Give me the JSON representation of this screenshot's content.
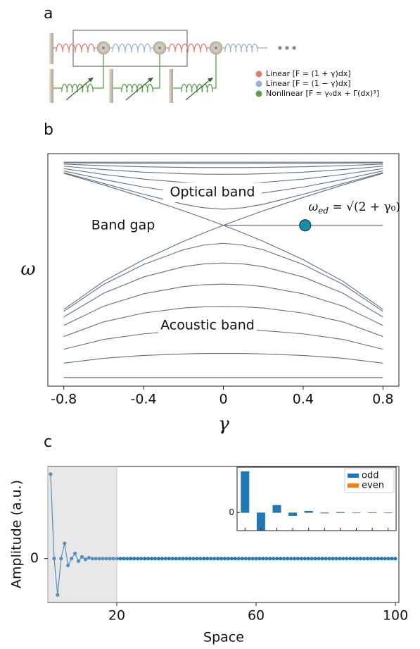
{
  "diagram": {
    "panel_label": "a",
    "legend": [
      {
        "label": "Linear  [F = (1 + γ)dx]",
        "color": "#e07b6a"
      },
      {
        "label": "Linear  [F = (1 − γ)dx]",
        "color": "#9ab0d3"
      },
      {
        "label": "Nonlinear  [F = γ₀dx + Γ(dx)³]",
        "color": "#5a9e4a"
      }
    ]
  },
  "chart_data": [
    {
      "type": "line",
      "panel_label": "b",
      "xlabel": "γ",
      "ylabel": "ω",
      "xlim": [
        -0.88,
        0.88
      ],
      "ylim": [
        -0.08,
        2.08
      ],
      "xticks": [
        {
          "value": -0.8,
          "label": "-0.8"
        },
        {
          "value": -0.4,
          "label": "-0.4"
        },
        0,
        0.4,
        0.8
      ],
      "x": [
        -0.8,
        -0.6,
        -0.4,
        -0.2,
        -0.1,
        0,
        0.1,
        0.2,
        0.4,
        0.6,
        0.8
      ],
      "series": [
        {
          "color": "#5f7186",
          "values": [
            0,
            0,
            0,
            0,
            0,
            0,
            0,
            0,
            0,
            0,
            0
          ]
        },
        {
          "color": "#5f7186",
          "values": [
            0.134,
            0.179,
            0.205,
            0.219,
            0.224,
            0.224,
            0.224,
            0.219,
            0.205,
            0.179,
            0.134
          ]
        },
        {
          "color": "#5f7186",
          "values": [
            0.263,
            0.354,
            0.406,
            0.436,
            0.443,
            0.445,
            0.443,
            0.436,
            0.406,
            0.354,
            0.263
          ]
        },
        {
          "color": "#5f7186",
          "values": [
            0.381,
            0.517,
            0.599,
            0.646,
            0.657,
            0.66,
            0.657,
            0.646,
            0.599,
            0.517,
            0.381
          ]
        },
        {
          "color": "#5f7186",
          "values": [
            0.484,
            0.663,
            0.778,
            0.845,
            0.862,
            0.868,
            0.862,
            0.845,
            0.778,
            0.663,
            0.484
          ]
        },
        {
          "color": "#5f7186",
          "values": [
            0.563,
            0.783,
            0.934,
            1.03,
            1.055,
            1.064,
            1.055,
            1.03,
            0.934,
            0.783,
            0.563
          ]
        },
        {
          "color": "#5f7186",
          "values": [
            0.615,
            0.865,
            1.05,
            1.187,
            1.23,
            1.247,
            1.23,
            1.187,
            1.05,
            0.865,
            0.615
          ]
        },
        {
          "color": "#5f7186",
          "values": [
            0.632,
            0.894,
            1.095,
            1.265,
            1.342,
            1.414,
            1.342,
            1.265,
            1.095,
            0.894,
            0.632
          ]
        },
        {
          "color": "#5f7186",
          "values": [
            2,
            2,
            2,
            2,
            2,
            2,
            2,
            2,
            2,
            2,
            2
          ]
        },
        {
          "color": "#5f7186",
          "values": [
            1.995,
            1.992,
            1.989,
            1.988,
            1.987,
            1.987,
            1.987,
            1.988,
            1.989,
            1.992,
            1.995
          ]
        },
        {
          "color": "#5f7186",
          "values": [
            1.983,
            1.968,
            1.958,
            1.952,
            1.95,
            1.95,
            1.95,
            1.952,
            1.958,
            1.968,
            1.983
          ]
        },
        {
          "color": "#5f7186",
          "values": [
            1.963,
            1.932,
            1.908,
            1.893,
            1.889,
            1.888,
            1.889,
            1.893,
            1.908,
            1.932,
            1.963
          ]
        },
        {
          "color": "#5f7186",
          "values": [
            1.941,
            1.887,
            1.843,
            1.813,
            1.805,
            1.802,
            1.805,
            1.813,
            1.843,
            1.887,
            1.941
          ]
        },
        {
          "color": "#5f7186",
          "values": [
            1.919,
            1.84,
            1.769,
            1.715,
            1.699,
            1.694,
            1.699,
            1.715,
            1.769,
            1.84,
            1.919
          ]
        },
        {
          "color": "#5f7186",
          "values": [
            1.903,
            1.803,
            1.702,
            1.61,
            1.577,
            1.564,
            1.577,
            1.61,
            1.702,
            1.803,
            1.903
          ]
        },
        {
          "color": "#5f7186",
          "values": [
            1.897,
            1.789,
            1.673,
            1.549,
            1.483,
            1.414,
            1.483,
            1.549,
            1.673,
            1.789,
            1.897
          ]
        }
      ],
      "edge_mode": {
        "x": [
          0,
          0.8
        ],
        "values": [
          1.414,
          1.414
        ],
        "color": "#5f7186"
      },
      "marker": {
        "x": 0.41,
        "y": 1.414,
        "color": "#1a8ca8"
      },
      "annotations": [
        {
          "text": "Optical band"
        },
        {
          "text": "Band gap"
        },
        {
          "text": "Acoustic band"
        }
      ],
      "edge_label": {
        "symbol": "ω",
        "subscript": "ed",
        "expression": " = √(2 + γ₀)"
      }
    },
    {
      "type": "line",
      "panel_label": "c",
      "xlabel": "Space",
      "ylabel": "Amplitude (a.u.)",
      "xlim": [
        0.2,
        101
      ],
      "ylim": [
        -0.52,
        1.09
      ],
      "xticks": [
        20,
        60,
        100
      ],
      "yticks": [
        0
      ],
      "markers": true,
      "shaded_xrange": [
        0.2,
        20
      ],
      "x": [
        1,
        2,
        3,
        4,
        5,
        6,
        7,
        8,
        9,
        10,
        11,
        12,
        13,
        14,
        15,
        16,
        17,
        18,
        19,
        20,
        21,
        22,
        23,
        24,
        25,
        26,
        27,
        28,
        29,
        30,
        31,
        32,
        33,
        34,
        35,
        36,
        37,
        38,
        39,
        40,
        41,
        42,
        43,
        44,
        45,
        46,
        47,
        48,
        49,
        50,
        51,
        52,
        53,
        54,
        55,
        56,
        57,
        58,
        59,
        60,
        61,
        62,
        63,
        64,
        65,
        66,
        67,
        68,
        69,
        70,
        71,
        72,
        73,
        74,
        75,
        76,
        77,
        78,
        79,
        80,
        81,
        82,
        83,
        84,
        85,
        86,
        87,
        88,
        89,
        90,
        91,
        92,
        93,
        94,
        95,
        96,
        97,
        98,
        99,
        100
      ],
      "series": [
        {
          "color": "#1f77b4",
          "values": [
            1.0,
            0,
            -0.43,
            0,
            0.18,
            -0.08,
            0,
            0.06,
            -0.03,
            0.02,
            -0.01,
            0.01,
            0,
            0,
            0,
            0,
            0,
            0,
            0,
            0,
            0,
            0,
            0,
            0,
            0,
            0,
            0,
            0,
            0,
            0,
            0,
            0,
            0,
            0,
            0,
            0,
            0,
            0,
            0,
            0,
            0,
            0,
            0,
            0,
            0,
            0,
            0,
            0,
            0,
            0,
            0,
            0,
            0,
            0,
            0,
            0,
            0,
            0,
            0,
            0,
            0,
            0,
            0,
            0,
            0,
            0,
            0,
            0,
            0,
            0,
            0,
            0,
            0,
            0,
            0,
            0,
            0,
            0,
            0,
            0,
            0,
            0,
            0,
            0,
            0,
            0,
            0,
            0,
            0,
            0,
            0,
            0,
            0,
            0,
            0,
            0,
            0,
            0,
            0,
            0
          ]
        }
      ]
    },
    {
      "type": "bar",
      "categories": [
        null,
        null,
        null,
        null,
        null,
        null,
        null,
        null,
        null,
        null
      ],
      "ylim": [
        -0.44,
        1.1
      ],
      "yticks": [
        0
      ],
      "legend": "upper right",
      "series": [
        {
          "name": "odd",
          "color": "#1f77b4",
          "values": [
            1.0,
            -0.43,
            0.18,
            -0.08,
            0.04,
            -0.02,
            0.01,
            -0.005,
            0.003,
            0
          ]
        },
        {
          "name": "even",
          "color": "#ff7f0e",
          "values": [
            0,
            0,
            0,
            0,
            0,
            0,
            0,
            0,
            0,
            0
          ]
        }
      ]
    }
  ]
}
